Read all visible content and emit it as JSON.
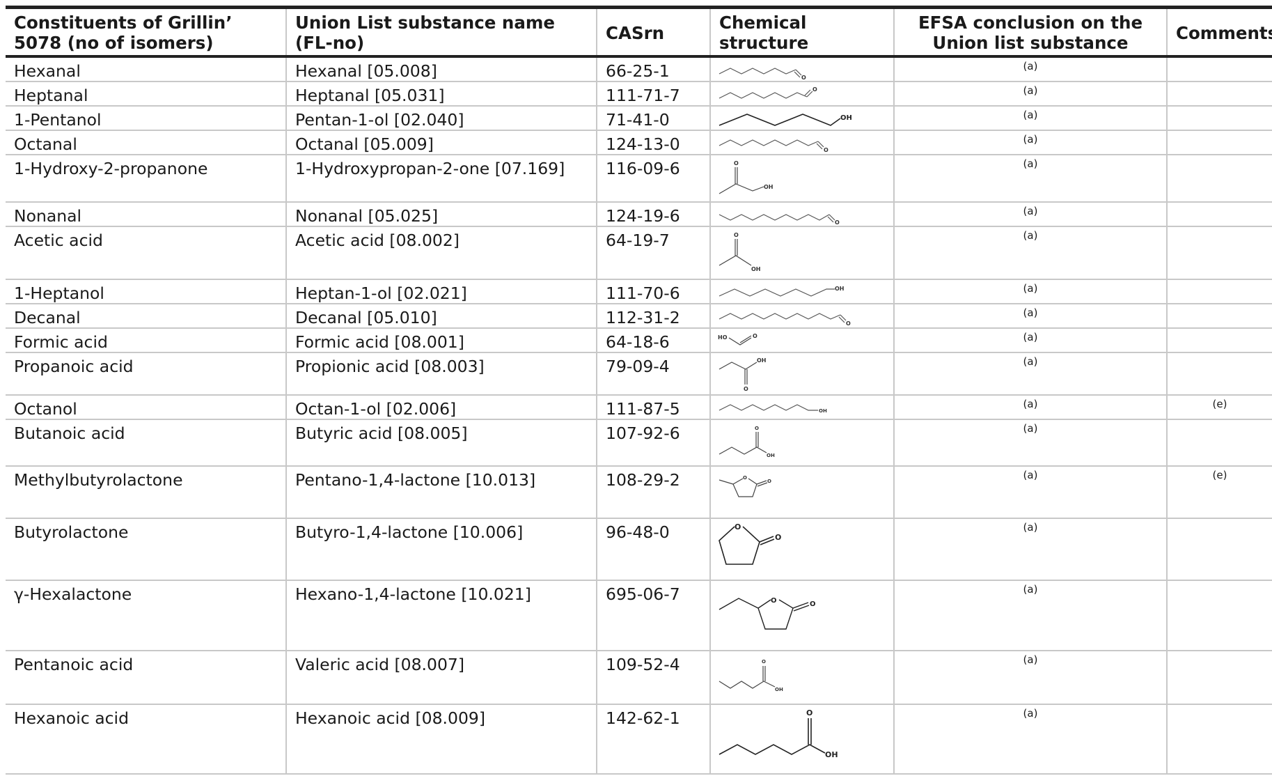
{
  "headers": {
    "constituent": "Constituents of Grillin’ 5078 (no of isomers)",
    "union_name": "Union List substance name (FL-no)",
    "casrn": "CASrn",
    "structure": "Chemical structure",
    "efsa": "EFSA conclusion on the Union list substance",
    "comments": "Comments"
  },
  "rows": [
    {
      "constituent": "Hexanal",
      "union_name": "Hexanal [05.008]",
      "casrn": "66-25-1",
      "structure": "hexanal-structure",
      "efsa": "(a)",
      "comments": ""
    },
    {
      "constituent": "Heptanal",
      "union_name": "Heptanal [05.031]",
      "casrn": "111-71-7",
      "structure": "heptanal-structure",
      "efsa": "(a)",
      "comments": ""
    },
    {
      "constituent": "1-Pentanol",
      "union_name": "Pentan-1-ol [02.040]",
      "casrn": "71-41-0",
      "structure": "pentanol-structure",
      "efsa": "(a)",
      "comments": ""
    },
    {
      "constituent": "Octanal",
      "union_name": "Octanal [05.009]",
      "casrn": "124-13-0",
      "structure": "octanal-structure",
      "efsa": "(a)",
      "comments": ""
    },
    {
      "constituent": "1-Hydroxy-2-propanone",
      "union_name": "1-Hydroxypropan-2-one [07.169]",
      "casrn": "116-09-6",
      "structure": "hydroxypropanone-structure",
      "efsa": "(a)",
      "comments": ""
    },
    {
      "constituent": "Nonanal",
      "union_name": "Nonanal [05.025]",
      "casrn": "124-19-6",
      "structure": "nonanal-structure",
      "efsa": "(a)",
      "comments": ""
    },
    {
      "constituent": "Acetic acid",
      "union_name": "Acetic acid [08.002]",
      "casrn": "64-19-7",
      "structure": "acetic-acid-structure",
      "efsa": "(a)",
      "comments": ""
    },
    {
      "constituent": "1-Heptanol",
      "union_name": "Heptan-1-ol [02.021]",
      "casrn": "111-70-6",
      "structure": "heptanol-structure",
      "efsa": "(a)",
      "comments": ""
    },
    {
      "constituent": "Decanal",
      "union_name": "Decanal [05.010]",
      "casrn": "112-31-2",
      "structure": "decanal-structure",
      "efsa": "(a)",
      "comments": ""
    },
    {
      "constituent": "Formic acid",
      "union_name": "Formic acid [08.001]",
      "casrn": "64-18-6",
      "structure": "formic-acid-structure",
      "efsa": "(a)",
      "comments": ""
    },
    {
      "constituent": "Propanoic acid",
      "union_name": "Propionic acid [08.003]",
      "casrn": "79-09-4",
      "structure": "propanoic-acid-structure",
      "efsa": "(a)",
      "comments": ""
    },
    {
      "constituent": "Octanol",
      "union_name": "Octan-1-ol [02.006]",
      "casrn": "111-87-5",
      "structure": "octanol-structure",
      "efsa": "(a)",
      "comments": "(e)"
    },
    {
      "constituent": "Butanoic acid",
      "union_name": "Butyric acid [08.005]",
      "casrn": "107-92-6",
      "structure": "butanoic-acid-structure",
      "efsa": "(a)",
      "comments": ""
    },
    {
      "constituent": "Methylbutyrolactone",
      "union_name": "Pentano-1,4-lactone [10.013]",
      "casrn": "108-29-2",
      "structure": "methylbutyrolactone-structure",
      "efsa": "(a)",
      "comments": "(e)"
    },
    {
      "constituent": "Butyrolactone",
      "union_name": "Butyro-1,4-lactone [10.006]",
      "casrn": "96-48-0",
      "structure": "butyrolactone-structure",
      "efsa": "(a)",
      "comments": ""
    },
    {
      "constituent": "γ-Hexalactone",
      "union_name": "Hexano-1,4-lactone [10.021]",
      "casrn": "695-06-7",
      "structure": "hexalactone-structure",
      "efsa": "(a)",
      "comments": ""
    },
    {
      "constituent": "Pentanoic acid",
      "union_name": "Valeric acid [08.007]",
      "casrn": "109-52-4",
      "structure": "pentanoic-acid-structure",
      "efsa": "(a)",
      "comments": ""
    },
    {
      "constituent": "Hexanoic acid",
      "union_name": "Hexanoic acid [08.009]",
      "casrn": "142-62-1",
      "structure": "hexanoic-acid-structure",
      "efsa": "(a)",
      "comments": ""
    }
  ],
  "atom_labels": {
    "o": "O",
    "oh": "OH",
    "ho": "HO"
  }
}
